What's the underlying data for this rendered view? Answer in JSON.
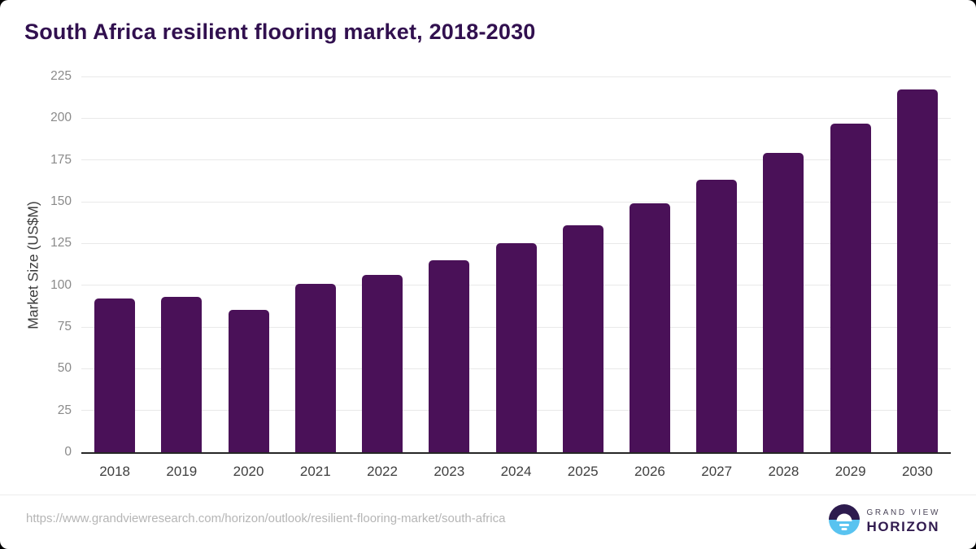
{
  "header": {
    "title": "South Africa resilient flooring market, 2018-2030"
  },
  "chart_data": {
    "type": "bar",
    "title": "South Africa resilient flooring market, 2018-2030",
    "categories": [
      "2018",
      "2019",
      "2020",
      "2021",
      "2022",
      "2023",
      "2024",
      "2025",
      "2026",
      "2027",
      "2028",
      "2029",
      "2030"
    ],
    "values": [
      92,
      93,
      85,
      101,
      106,
      115,
      125,
      136,
      149,
      163,
      179,
      197,
      217
    ],
    "xlabel": "",
    "ylabel": "Market Size (US$M)",
    "ylim": [
      0,
      225
    ],
    "yticks": [
      0,
      25,
      50,
      75,
      100,
      125,
      150,
      175,
      200,
      225
    ],
    "bar_color": "#4a1158",
    "grid": "horizontal",
    "legend": "none"
  },
  "footer": {
    "source_url": "https://www.grandviewresearch.com/horizon/outlook/resilient-flooring-market/south-africa",
    "logo": {
      "line1": "GRAND VIEW",
      "line2": "HORIZON"
    }
  },
  "colors": {
    "bar": "#4a1158",
    "title_text": "#31104f",
    "axis_line": "#262626",
    "gridline": "#e9e9e9",
    "y_tick_text": "#8a8a8a",
    "x_tick_text": "#3f3f3f",
    "url_text": "#b5b5b5",
    "logo_purple": "#2d1b4e",
    "logo_blue": "#59c3f0"
  }
}
